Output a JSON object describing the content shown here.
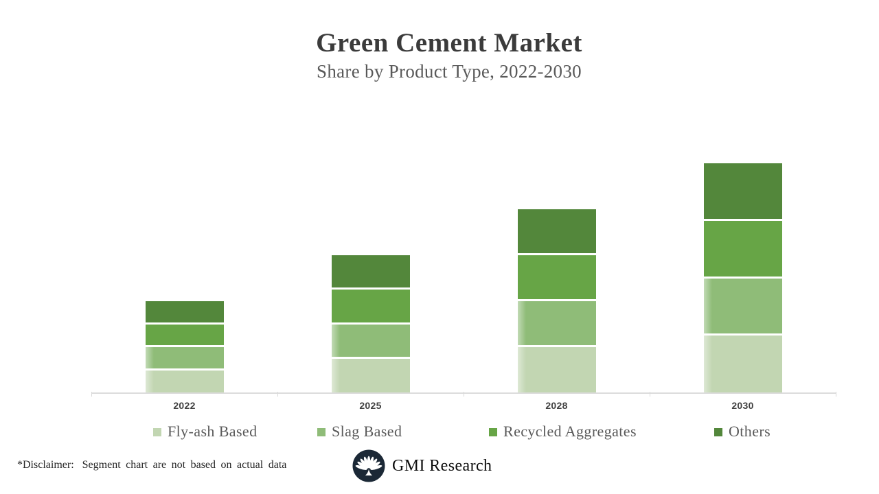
{
  "header": {
    "title": "Green Cement Market",
    "subtitle": "Share by Product Type, 2022-2030"
  },
  "chart_data": {
    "type": "bar",
    "stacked": true,
    "title": "Green Cement Market",
    "subtitle": "Share by Product Type, 2022-2030",
    "categories": [
      "2022",
      "2025",
      "2028",
      "2030"
    ],
    "series": [
      {
        "name": "Fly-ash Based",
        "color": "#C2D6B2",
        "values": [
          2,
          3,
          4,
          5
        ]
      },
      {
        "name": "Slag Based",
        "color": "#8FBC78",
        "values": [
          2,
          3,
          4,
          5
        ]
      },
      {
        "name": "Recycled Aggregates",
        "color": "#67A546",
        "values": [
          2,
          3,
          4,
          5
        ]
      },
      {
        "name": "Others",
        "color": "#53873B",
        "values": [
          2,
          3,
          4,
          5
        ]
      }
    ],
    "xlabel": "",
    "ylabel": "",
    "grid": false,
    "y_axis_visible": false,
    "legend_position": "bottom",
    "legend_entries": [
      "Fly-ash Based",
      "Slag Based",
      "Recycled Aggregates",
      "Others"
    ],
    "axis_line_color": "#D9D9D9"
  },
  "footer": {
    "disclaimer_label": "*Disclaimer:",
    "disclaimer_text": "Segment chart are not based on actual data",
    "brand": "GMI Research"
  }
}
